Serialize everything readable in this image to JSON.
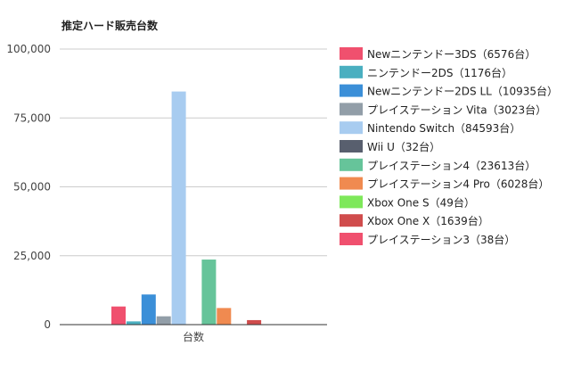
{
  "chart_data": {
    "type": "bar",
    "title": "推定ハード販売台数",
    "xlabel": "",
    "ylabel": "",
    "categories": [
      "台数"
    ],
    "ylim": [
      0,
      100000
    ],
    "yticks": [
      0,
      25000,
      50000,
      75000,
      100000
    ],
    "ytick_labels": [
      "0",
      "25,000",
      "50,000",
      "75,000",
      "100,000"
    ],
    "grid": true,
    "legend_position": "right",
    "series": [
      {
        "name": "Newニンテンドー3DS",
        "value": 6576,
        "legend": "Newニンテンドー3DS（6576台）",
        "color": "#f0506e"
      },
      {
        "name": "ニンテンドー2DS",
        "value": 1176,
        "legend": "ニンテンドー2DS（1176台）",
        "color": "#4aafc0"
      },
      {
        "name": "Newニンテンドー2DS LL",
        "value": 10935,
        "legend": "Newニンテンドー2DS LL（10935台）",
        "color": "#3b8fd8"
      },
      {
        "name": "プレイステーション Vita",
        "value": 3023,
        "legend": "プレイステーション Vita（3023台）",
        "color": "#929ea8"
      },
      {
        "name": "Nintendo Switch",
        "value": 84593,
        "legend": "Nintendo Switch（84593台）",
        "color": "#a8ccf0"
      },
      {
        "name": "Wii U",
        "value": 32,
        "legend": "Wii U（32台）",
        "color": "#585f6e"
      },
      {
        "name": "プレイステーション4",
        "value": 23613,
        "legend": "プレイステーション4（23613台）",
        "color": "#66c49a"
      },
      {
        "name": "プレイステーション4 Pro",
        "value": 6028,
        "legend": "プレイステーション4 Pro（6028台）",
        "color": "#f08a50"
      },
      {
        "name": "Xbox One S",
        "value": 49,
        "legend": "Xbox One S（49台）",
        "color": "#7ee85a"
      },
      {
        "name": "Xbox One X",
        "value": 1639,
        "legend": "Xbox One X（1639台）",
        "color": "#d04c4c"
      },
      {
        "name": "プレイステーション3",
        "value": 38,
        "legend": "プレイステーション3（38台）",
        "color": "#f0506e"
      }
    ]
  }
}
